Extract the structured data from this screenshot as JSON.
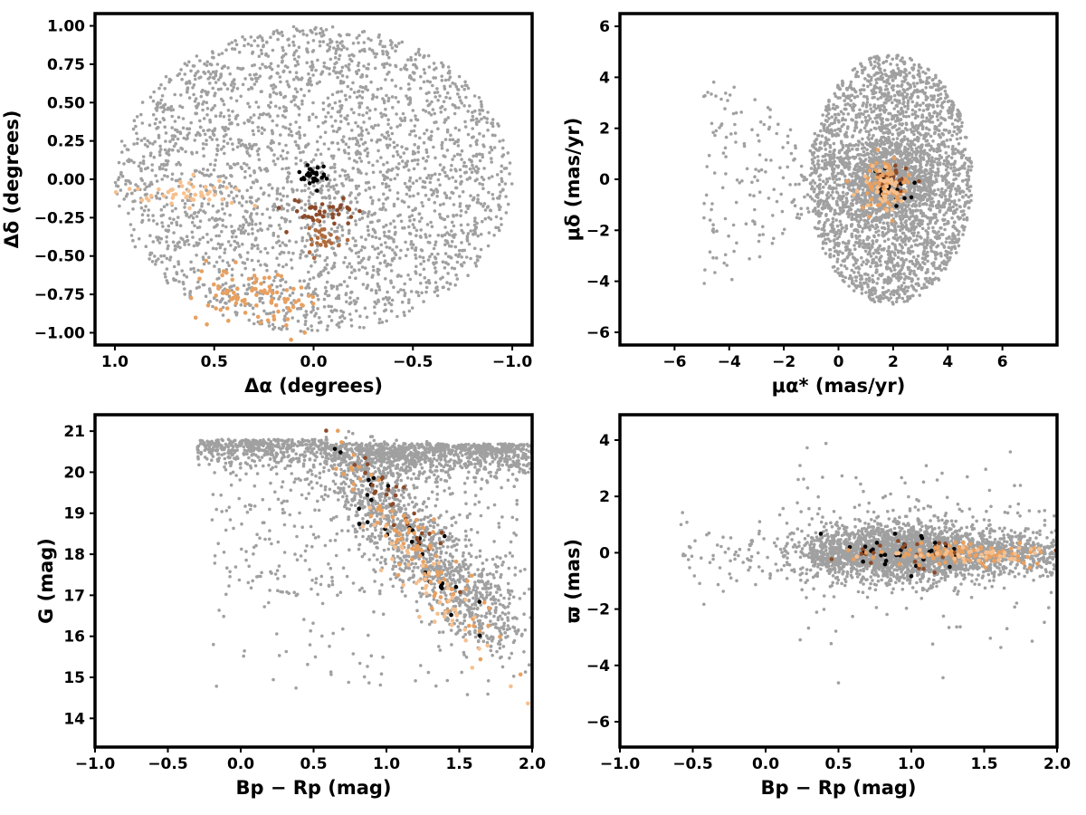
{
  "colors": {
    "field": "#a0a0a0",
    "black": "#000000",
    "dark_brown": "#8c4a28",
    "medium_brown": "#b06a3c",
    "orange": "#e8a060",
    "peach": "#f6c08e"
  },
  "chart_data": [
    {
      "id": "sky",
      "type": "scatter",
      "xlabel": "Δα (degrees)",
      "ylabel": "Δδ (degrees)",
      "xlim": [
        1.1,
        -1.1
      ],
      "ylim": [
        -1.08,
        1.08
      ],
      "x_ticks": [
        "1.0",
        "0.5",
        "0.0",
        "−0.5",
        "−1.0"
      ],
      "y_ticks": [
        "−1.00",
        "−0.75",
        "−0.50",
        "−0.25",
        "0.00",
        "0.25",
        "0.50",
        "0.75",
        "1.00"
      ],
      "grid": false,
      "field": {
        "shape": "ellipse",
        "center": [
          0,
          0
        ],
        "radius": [
          1.0,
          1.0
        ],
        "count": 2800,
        "color": "#a0a0a0"
      },
      "groups": [
        {
          "color": "#000000",
          "center": [
            0.0,
            0.02
          ],
          "spread": [
            0.04,
            0.04
          ],
          "count": 30
        },
        {
          "color": "#8c4a28",
          "center": [
            -0.05,
            -0.2
          ],
          "spread": [
            0.09,
            0.05
          ],
          "count": 40
        },
        {
          "color": "#b06a3c",
          "center": [
            -0.05,
            -0.4
          ],
          "spread": [
            0.05,
            0.05
          ],
          "count": 25
        },
        {
          "color": "#f6c08e",
          "center": [
            0.65,
            -0.08
          ],
          "spread": [
            0.12,
            0.05
          ],
          "count": 45
        },
        {
          "color": "#e8a060",
          "center": [
            0.3,
            -0.78
          ],
          "spread": [
            0.16,
            0.1
          ],
          "count": 90
        }
      ]
    },
    {
      "id": "pm",
      "type": "scatter",
      "xlabel": "μα* (mas/yr)",
      "ylabel": "μδ (mas/yr)",
      "xlim": [
        -8,
        8
      ],
      "ylim": [
        -6.5,
        6.5
      ],
      "x_ticks": [
        "−6",
        "−4",
        "−2",
        "0",
        "2",
        "4",
        "6"
      ],
      "y_ticks": [
        "−6",
        "−4",
        "−2",
        "0",
        "2",
        "4",
        "6"
      ],
      "grid": false,
      "field": {
        "shape": "ellipse",
        "center": [
          1.9,
          0
        ],
        "radius": [
          3.0,
          4.9
        ],
        "count": 2600,
        "color": "#a0a0a0"
      },
      "field_core": {
        "center": [
          1.8,
          -0.1
        ],
        "spread": [
          0.8,
          0.8
        ],
        "count": 900
      },
      "field_tail": {
        "x_range": [
          -5,
          -1
        ],
        "y_range": [
          -4,
          4
        ],
        "count": 150
      },
      "groups": [
        {
          "color": "#000000",
          "center": [
            1.9,
            -0.3
          ],
          "spread": [
            0.3,
            0.3
          ],
          "count": 25
        },
        {
          "color": "#8c4a28",
          "center": [
            1.8,
            -0.2
          ],
          "spread": [
            0.35,
            0.35
          ],
          "count": 20
        },
        {
          "color": "#e8a060",
          "center": [
            1.7,
            -0.2
          ],
          "spread": [
            0.45,
            0.5
          ],
          "count": 70
        },
        {
          "color": "#f6c08e",
          "center": [
            1.6,
            -0.3
          ],
          "spread": [
            0.4,
            0.45
          ],
          "count": 35
        }
      ]
    },
    {
      "id": "cmd",
      "type": "scatter",
      "xlabel": "Bp − Rp (mag)",
      "ylabel": "G (mag)",
      "xlim": [
        -1.0,
        2.0
      ],
      "ylim": [
        13.3,
        21.4
      ],
      "x_ticks": [
        "−1.0",
        "−0.5",
        "0.0",
        "0.5",
        "1.0",
        "1.5",
        "2.0"
      ],
      "y_ticks": [
        "14",
        "15",
        "16",
        "17",
        "18",
        "19",
        "20",
        "21"
      ],
      "grid": false,
      "field": {
        "shape": "cmd",
        "count": 3000,
        "color": "#a0a0a0"
      },
      "groups": [
        {
          "color": "#000000",
          "center": [
            1.1,
            18.5
          ],
          "spread": [
            0.2,
            1.2
          ],
          "count": 30
        },
        {
          "color": "#8c4a28",
          "center": [
            1.1,
            19.0
          ],
          "spread": [
            0.15,
            0.8
          ],
          "count": 30
        },
        {
          "color": "#e8a060",
          "center": [
            1.25,
            18.0
          ],
          "spread": [
            0.2,
            1.3
          ],
          "count": 90
        },
        {
          "color": "#f6c08e",
          "center": [
            1.35,
            17.0
          ],
          "spread": [
            0.2,
            1.0
          ],
          "count": 50
        }
      ]
    },
    {
      "id": "plx",
      "type": "scatter",
      "xlabel": "Bp − Rp (mag)",
      "ylabel": "ϖ (mas)",
      "xlim": [
        -1.0,
        2.0
      ],
      "ylim": [
        -6.9,
        4.9
      ],
      "x_ticks": [
        "−1.0",
        "−0.5",
        "0.0",
        "0.5",
        "1.0",
        "1.5",
        "2.0"
      ],
      "y_ticks": [
        "−6",
        "−4",
        "−2",
        "0",
        "2",
        "4"
      ],
      "grid": false,
      "field": {
        "shape": "plx",
        "count": 3000,
        "color": "#a0a0a0"
      },
      "groups": [
        {
          "color": "#000000",
          "center": [
            1.0,
            0.0
          ],
          "spread": [
            0.25,
            0.35
          ],
          "count": 30
        },
        {
          "color": "#8c4a28",
          "center": [
            1.0,
            0.0
          ],
          "spread": [
            0.3,
            0.3
          ],
          "count": 25
        },
        {
          "color": "#e8a060",
          "center": [
            1.3,
            0.0
          ],
          "spread": [
            0.25,
            0.2
          ],
          "count": 90
        },
        {
          "color": "#f6c08e",
          "center": [
            1.45,
            -0.05
          ],
          "spread": [
            0.25,
            0.15
          ],
          "count": 40
        }
      ]
    }
  ]
}
